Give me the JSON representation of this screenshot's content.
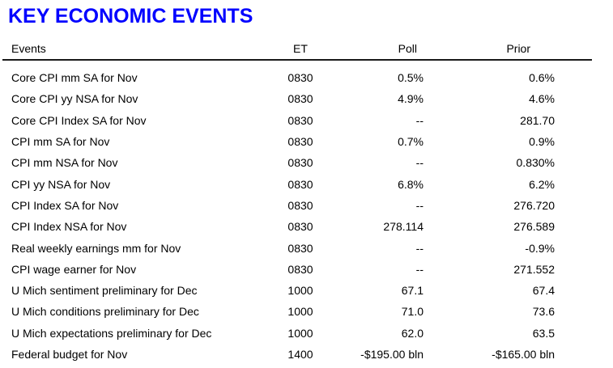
{
  "title": "KEY ECONOMIC EVENTS",
  "colors": {
    "title": "#0101ff",
    "text": "#000000",
    "rule": "#1a1a1a"
  },
  "table": {
    "headers": [
      "Events",
      "ET",
      "Poll",
      "Prior"
    ],
    "rows": [
      {
        "event": "Core CPI mm SA for Nov",
        "et": "0830",
        "poll": "0.5%",
        "prior": "0.6%"
      },
      {
        "event": "Core CPI yy NSA for Nov",
        "et": "0830",
        "poll": "4.9%",
        "prior": "4.6%"
      },
      {
        "event": "Core CPI Index SA for Nov",
        "et": "0830",
        "poll": "--",
        "prior": "281.70"
      },
      {
        "event": "CPI mm SA for Nov",
        "et": "0830",
        "poll": "0.7%",
        "prior": "0.9%"
      },
      {
        "event": "CPI mm NSA for Nov",
        "et": "0830",
        "poll": "--",
        "prior": "0.830%"
      },
      {
        "event": "CPI yy NSA for Nov",
        "et": "0830",
        "poll": "6.8%",
        "prior": "6.2%"
      },
      {
        "event": "CPI Index SA for Nov",
        "et": "0830",
        "poll": "--",
        "prior": "276.720"
      },
      {
        "event": "CPI Index NSA for Nov",
        "et": "0830",
        "poll": "278.114",
        "prior": "276.589"
      },
      {
        "event": "Real weekly earnings mm for Nov",
        "et": "0830",
        "poll": "--",
        "prior": "-0.9%"
      },
      {
        "event": "CPI wage earner for Nov",
        "et": "0830",
        "poll": "--",
        "prior": "271.552"
      },
      {
        "event": "U Mich sentiment preliminary for Dec",
        "et": "1000",
        "poll": "67.1",
        "prior": "67.4"
      },
      {
        "event": "U Mich conditions preliminary for Dec",
        "et": "1000",
        "poll": "71.0",
        "prior": "73.6"
      },
      {
        "event": "U Mich expectations preliminary for Dec",
        "et": "1000",
        "poll": "62.0",
        "prior": "63.5"
      },
      {
        "event": "Federal budget for Nov",
        "et": "1400",
        "poll": "-$195.00 bln",
        "prior": "-$165.00 bln"
      }
    ]
  }
}
